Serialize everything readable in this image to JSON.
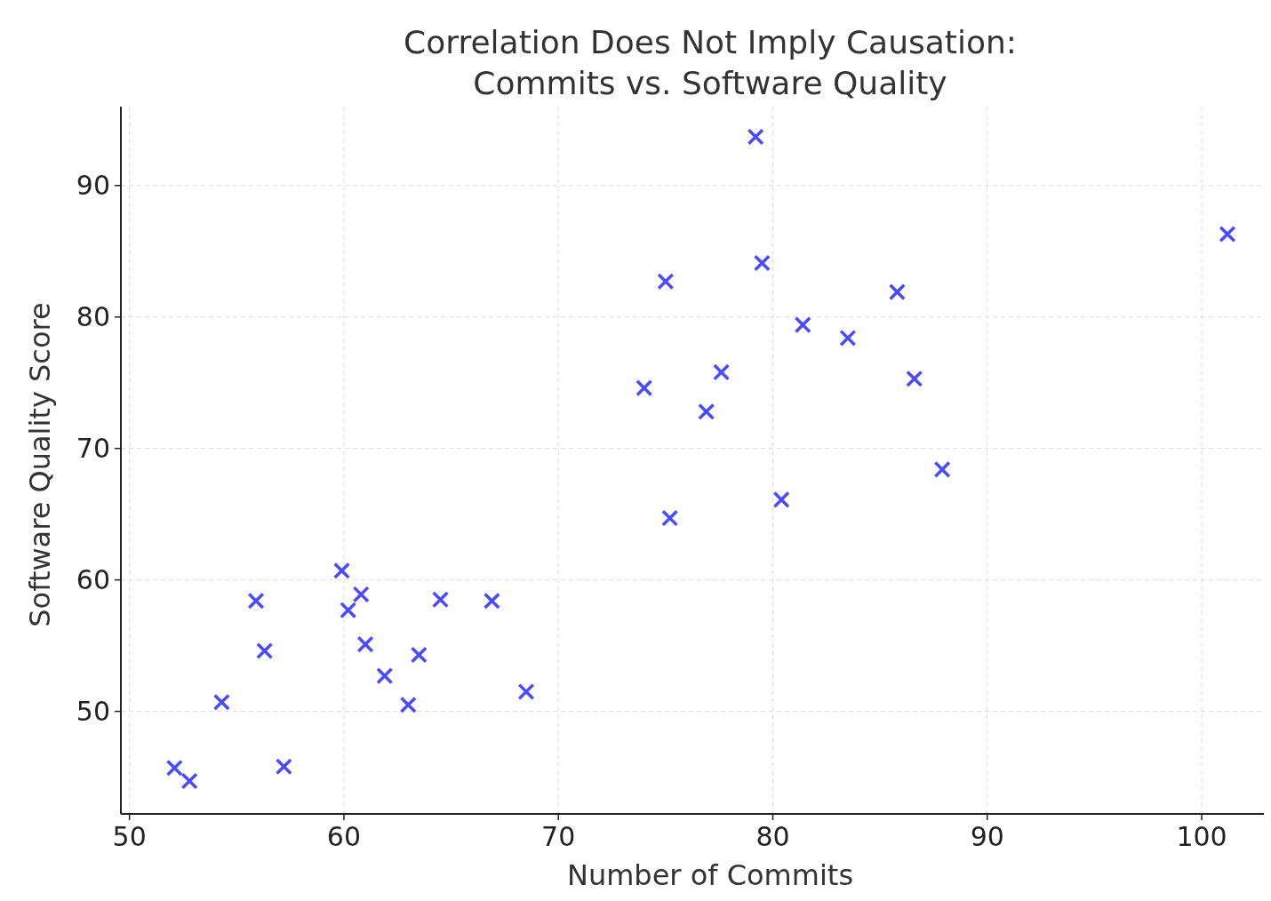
{
  "chart_data": {
    "type": "scatter",
    "title": "Correlation Does Not Imply Causation:\nCommits vs. Software Quality",
    "xlabel": "Number of Commits",
    "ylabel": "Software Quality Score",
    "x": [
      52.1,
      52.8,
      54.3,
      55.9,
      56.3,
      57.2,
      59.9,
      60.2,
      60.8,
      61.0,
      61.9,
      63.0,
      63.5,
      64.5,
      66.9,
      68.5,
      74.0,
      75.0,
      75.2,
      76.9,
      77.6,
      79.2,
      79.5,
      80.4,
      81.4,
      83.5,
      85.8,
      86.6,
      87.9,
      101.2
    ],
    "series": [
      {
        "color": "#4a4aff",
        "values": [
          45.7,
          44.7,
          50.7,
          58.4,
          54.6,
          45.8,
          60.7,
          57.7,
          58.9,
          55.1,
          52.7,
          50.5,
          54.3,
          58.5,
          58.4,
          51.5,
          74.6,
          82.7,
          64.7,
          72.8,
          75.8,
          93.7,
          84.1,
          66.1,
          79.4,
          78.4,
          81.9,
          75.3,
          68.4,
          86.3
        ]
      }
    ],
    "xlim": [
      49.6,
      102.9
    ],
    "ylim": [
      42.2,
      96.0
    ],
    "xticks": [
      50,
      60,
      70,
      80,
      90,
      100
    ],
    "yticks": [
      50,
      60,
      70,
      80,
      90
    ],
    "grid": true,
    "marker": "cross"
  }
}
